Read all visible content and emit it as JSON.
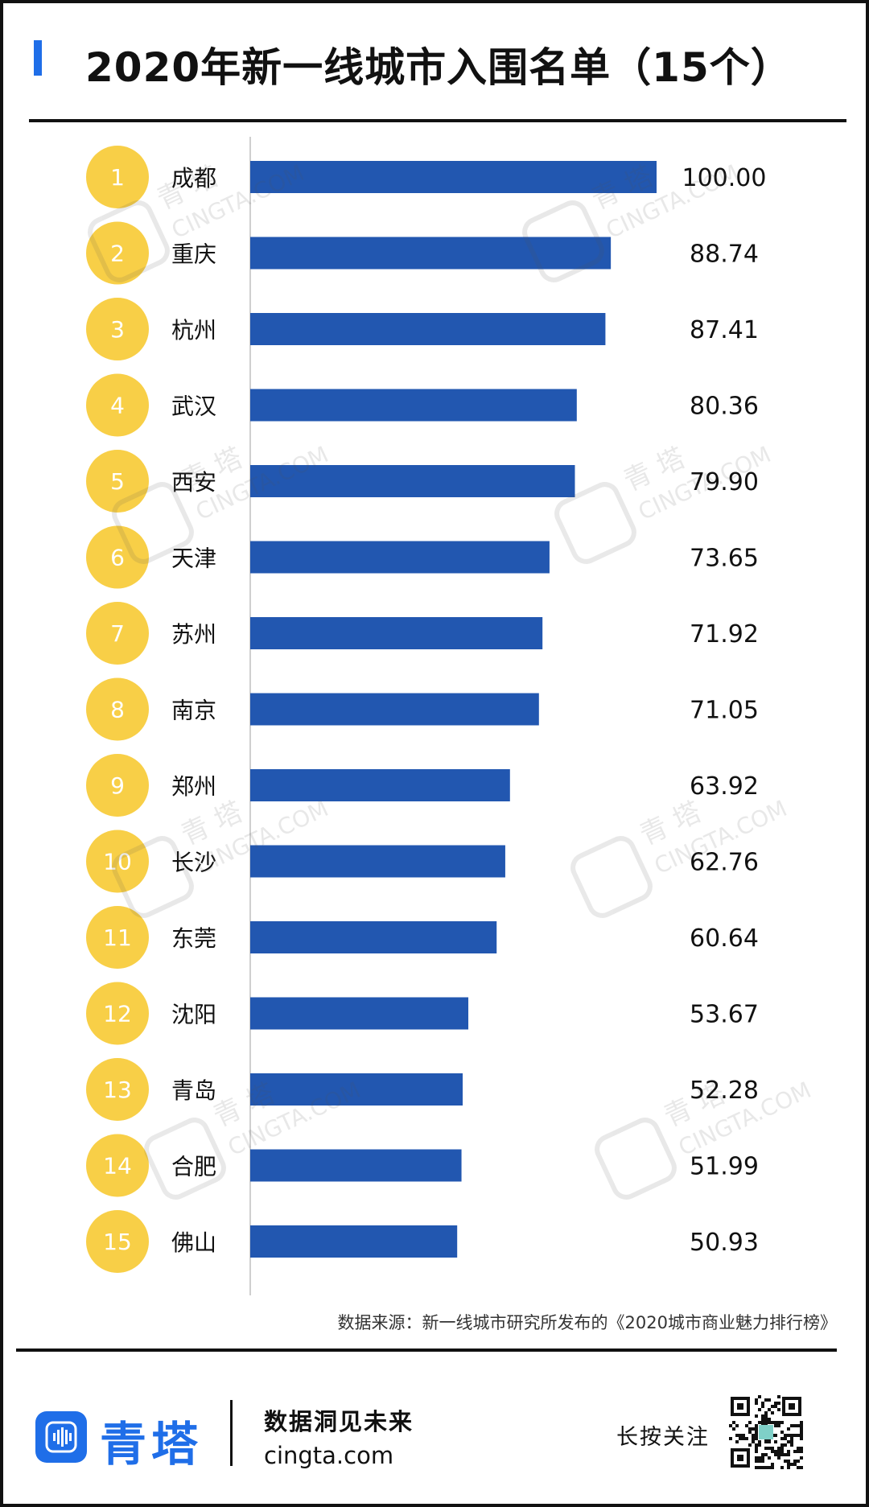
{
  "header": {
    "title": "2020年新一线城市入围名单（15个）",
    "accent_color": "#1f6ee8"
  },
  "chart_data": {
    "type": "bar",
    "orientation": "horizontal",
    "ranks": [
      "1",
      "2",
      "3",
      "4",
      "5",
      "6",
      "7",
      "8",
      "9",
      "10",
      "11",
      "12",
      "13",
      "14",
      "15"
    ],
    "categories": [
      "成都",
      "重庆",
      "杭州",
      "武汉",
      "西安",
      "天津",
      "苏州",
      "南京",
      "郑州",
      "长沙",
      "东莞",
      "沈阳",
      "青岛",
      "合肥",
      "佛山"
    ],
    "values": [
      100.0,
      88.74,
      87.41,
      80.36,
      79.9,
      73.65,
      71.92,
      71.05,
      63.92,
      62.76,
      60.64,
      53.67,
      52.28,
      51.99,
      50.93
    ],
    "value_labels": [
      "100.00",
      "88.74",
      "87.41",
      "80.36",
      "79.90",
      "73.65",
      "71.92",
      "71.05",
      "63.92",
      "62.76",
      "60.64",
      "53.67",
      "52.28",
      "51.99",
      "50.93"
    ],
    "xlim": [
      0,
      100
    ],
    "grid": false,
    "bar_color": "#2257b0",
    "rank_badge_color": "#f8cf47",
    "axis_color": "#cfcfcf"
  },
  "source": {
    "text": "数据来源：新一线城市研究所发布的《2020城市商业魅力排行榜》"
  },
  "footer": {
    "brand_name": "青塔",
    "slogan": "数据洞见未来",
    "url": "cingta.com",
    "follow_label": "长按关注",
    "brand_color": "#1f6ee8",
    "logo_icon": "sound-wave-icon",
    "qr_icon": "qr-code-icon"
  },
  "watermark": {
    "text": "青 塔",
    "domain": "CINGTA.COM"
  }
}
